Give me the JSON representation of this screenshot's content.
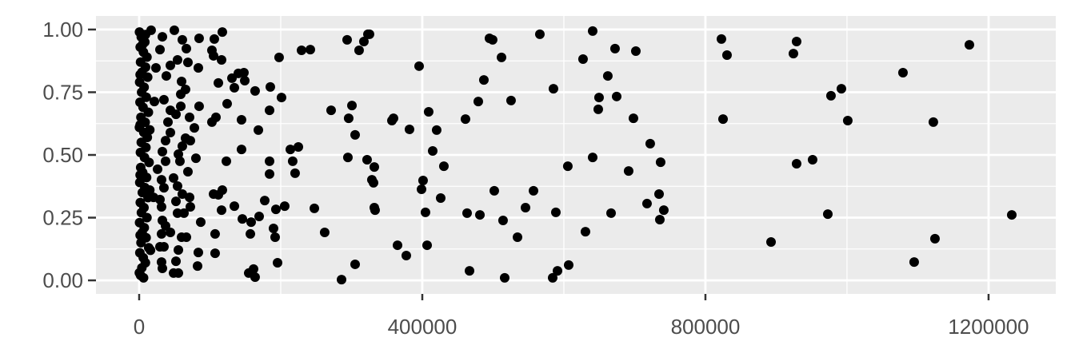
{
  "chart_data": {
    "type": "scatter",
    "title": "",
    "xlabel": "",
    "ylabel": "",
    "xlim": [
      -61000,
      1295000
    ],
    "ylim": [
      -0.054,
      1.054
    ],
    "x_ticks": [
      0,
      400000,
      800000,
      1200000
    ],
    "x_tick_labels": [
      "0",
      "400000",
      "800000",
      "1200000"
    ],
    "x_minor_ticks": [
      200000,
      600000,
      1000000
    ],
    "y_ticks": [
      0,
      0.25,
      0.5,
      0.75,
      1
    ],
    "y_tick_labels": [
      "0.00",
      "0.25",
      "0.50",
      "0.75",
      "1.00"
    ],
    "y_minor_ticks": [
      0.125,
      0.375,
      0.625,
      0.875
    ],
    "grid": true,
    "legend": "none",
    "colors": {
      "panel": "#ebebeb",
      "grid": "#ffffff",
      "point": "#000000",
      "text": "#4d4d4d"
    },
    "points": [
      [
        822600,
        0.962
      ],
      [
        830500,
        0.898
      ],
      [
        928800,
        0.952
      ],
      [
        924300,
        0.904
      ],
      [
        1172900,
        0.939
      ],
      [
        1079100,
        0.828
      ],
      [
        992100,
        0.764
      ],
      [
        977400,
        0.736
      ],
      [
        824900,
        0.643
      ],
      [
        1001100,
        0.637
      ],
      [
        1122000,
        0.631
      ],
      [
        951400,
        0.481
      ],
      [
        928800,
        0.465
      ],
      [
        972900,
        0.264
      ],
      [
        1232800,
        0.261
      ],
      [
        892700,
        0.153
      ],
      [
        1124300,
        0.166
      ],
      [
        1094900,
        0.073
      ],
      [
        325400,
        0.981
      ],
      [
        494900,
        0.965
      ],
      [
        499400,
        0.959
      ],
      [
        566100,
        0.981
      ],
      [
        640700,
        0.994
      ],
      [
        672300,
        0.924
      ],
      [
        701700,
        0.914
      ],
      [
        511900,
        0.889
      ],
      [
        627100,
        0.882
      ],
      [
        395500,
        0.854
      ],
      [
        662100,
        0.815
      ],
      [
        487000,
        0.799
      ],
      [
        585300,
        0.764
      ],
      [
        479100,
        0.713
      ],
      [
        525400,
        0.717
      ],
      [
        649700,
        0.729
      ],
      [
        674600,
        0.733
      ],
      [
        648600,
        0.682
      ],
      [
        409000,
        0.672
      ],
      [
        461000,
        0.643
      ],
      [
        698300,
        0.646
      ],
      [
        359300,
        0.646
      ],
      [
        357100,
        0.637
      ],
      [
        381900,
        0.602
      ],
      [
        420300,
        0.599
      ],
      [
        722000,
        0.545
      ],
      [
        414700,
        0.516
      ],
      [
        640700,
        0.49
      ],
      [
        605600,
        0.455
      ],
      [
        430500,
        0.455
      ],
      [
        736700,
        0.471
      ],
      [
        691500,
        0.436
      ],
      [
        332200,
        0.452
      ],
      [
        328800,
        0.401
      ],
      [
        331100,
        0.389
      ],
      [
        401100,
        0.398
      ],
      [
        398900,
        0.363
      ],
      [
        501700,
        0.357
      ],
      [
        557100,
        0.357
      ],
      [
        426000,
        0.328
      ],
      [
        734500,
        0.344
      ],
      [
        717500,
        0.306
      ],
      [
        741200,
        0.28
      ],
      [
        332200,
        0.29
      ],
      [
        333300,
        0.28
      ],
      [
        545800,
        0.29
      ],
      [
        404500,
        0.271
      ],
      [
        463300,
        0.268
      ],
      [
        481400,
        0.261
      ],
      [
        588700,
        0.271
      ],
      [
        666700,
        0.268
      ],
      [
        735600,
        0.242
      ],
      [
        514100,
        0.239
      ],
      [
        630500,
        0.194
      ],
      [
        534500,
        0.172
      ],
      [
        365000,
        0.14
      ],
      [
        406800,
        0.14
      ],
      [
        377400,
        0.099
      ],
      [
        606800,
        0.061
      ],
      [
        466700,
        0.038
      ],
      [
        591000,
        0.038
      ],
      [
        584200,
        0.01
      ],
      [
        516400,
        0.01
      ],
      [
        16900,
        0.997
      ],
      [
        49700,
        0.997
      ],
      [
        117500,
        0.99
      ],
      [
        32800,
        0.971
      ],
      [
        61000,
        0.959
      ],
      [
        84700,
        0.965
      ],
      [
        106200,
        0.962
      ],
      [
        293800,
        0.959
      ],
      [
        323200,
        0.981
      ],
      [
        317500,
        0.952
      ],
      [
        310700,
        0.917
      ],
      [
        66700,
        0.924
      ],
      [
        29400,
        0.92
      ],
      [
        102800,
        0.917
      ],
      [
        105100,
        0.895
      ],
      [
        116400,
        0.879
      ],
      [
        197700,
        0.889
      ],
      [
        229400,
        0.917
      ],
      [
        241800,
        0.92
      ],
      [
        23700,
        0.847
      ],
      [
        44100,
        0.857
      ],
      [
        54200,
        0.879
      ],
      [
        68900,
        0.869
      ],
      [
        83600,
        0.847
      ],
      [
        38400,
        0.815
      ],
      [
        59900,
        0.793
      ],
      [
        65500,
        0.761
      ],
      [
        111900,
        0.787
      ],
      [
        131100,
        0.806
      ],
      [
        140100,
        0.825
      ],
      [
        148000,
        0.828
      ],
      [
        149200,
        0.796
      ],
      [
        134500,
        0.768
      ],
      [
        163800,
        0.755
      ],
      [
        185300,
        0.771
      ],
      [
        201100,
        0.729
      ],
      [
        58800,
        0.742
      ],
      [
        35000,
        0.72
      ],
      [
        21500,
        0.713
      ],
      [
        84700,
        0.694
      ],
      [
        58800,
        0.694
      ],
      [
        124300,
        0.704
      ],
      [
        184200,
        0.678
      ],
      [
        271200,
        0.678
      ],
      [
        300600,
        0.697
      ],
      [
        296000,
        0.646
      ],
      [
        44100,
        0.678
      ],
      [
        52000,
        0.662
      ],
      [
        71200,
        0.65
      ],
      [
        40700,
        0.631
      ],
      [
        108500,
        0.65
      ],
      [
        102800,
        0.631
      ],
      [
        144600,
        0.64
      ],
      [
        78000,
        0.608
      ],
      [
        44100,
        0.589
      ],
      [
        168400,
        0.599
      ],
      [
        305100,
        0.58
      ],
      [
        37300,
        0.557
      ],
      [
        65500,
        0.567
      ],
      [
        72300,
        0.557
      ],
      [
        61000,
        0.535
      ],
      [
        144600,
        0.522
      ],
      [
        213600,
        0.522
      ],
      [
        224900,
        0.532
      ],
      [
        294900,
        0.49
      ],
      [
        322000,
        0.481
      ],
      [
        32800,
        0.513
      ],
      [
        55400,
        0.503
      ],
      [
        80200,
        0.487
      ],
      [
        57600,
        0.475
      ],
      [
        123200,
        0.475
      ],
      [
        184200,
        0.475
      ],
      [
        216900,
        0.475
      ],
      [
        184200,
        0.424
      ],
      [
        220300,
        0.427
      ],
      [
        26000,
        0.443
      ],
      [
        37300,
        0.475
      ],
      [
        68900,
        0.433
      ],
      [
        31600,
        0.401
      ],
      [
        48600,
        0.408
      ],
      [
        54200,
        0.376
      ],
      [
        35000,
        0.369
      ],
      [
        105100,
        0.344
      ],
      [
        117500,
        0.36
      ],
      [
        111900,
        0.341
      ],
      [
        20300,
        0.331
      ],
      [
        61000,
        0.344
      ],
      [
        71200,
        0.331
      ],
      [
        52000,
        0.315
      ],
      [
        29400,
        0.322
      ],
      [
        31600,
        0.293
      ],
      [
        72300,
        0.293
      ],
      [
        54200,
        0.268
      ],
      [
        63300,
        0.268
      ],
      [
        116400,
        0.28
      ],
      [
        134500,
        0.296
      ],
      [
        177400,
        0.318
      ],
      [
        193200,
        0.283
      ],
      [
        205600,
        0.296
      ],
      [
        247500,
        0.287
      ],
      [
        145800,
        0.245
      ],
      [
        158200,
        0.232
      ],
      [
        169500,
        0.255
      ],
      [
        87000,
        0.232
      ],
      [
        32800,
        0.239
      ],
      [
        37300,
        0.217
      ],
      [
        44100,
        0.191
      ],
      [
        31600,
        0.185
      ],
      [
        107300,
        0.185
      ],
      [
        157100,
        0.185
      ],
      [
        189800,
        0.207
      ],
      [
        192100,
        0.172
      ],
      [
        262100,
        0.191
      ],
      [
        59900,
        0.172
      ],
      [
        66700,
        0.172
      ],
      [
        29400,
        0.134
      ],
      [
        35000,
        0.134
      ],
      [
        55400,
        0.121
      ],
      [
        83600,
        0.111
      ],
      [
        107300,
        0.108
      ],
      [
        31600,
        0.073
      ],
      [
        52000,
        0.076
      ],
      [
        82500,
        0.057
      ],
      [
        32800,
        0.048
      ],
      [
        48600,
        0.029
      ],
      [
        55400,
        0.029
      ],
      [
        154800,
        0.029
      ],
      [
        161600,
        0.045
      ],
      [
        163800,
        0.013
      ],
      [
        195500,
        0.07
      ],
      [
        305100,
        0.064
      ],
      [
        285900,
        0.003
      ],
      [
        500,
        0.99
      ],
      [
        3000,
        0.97
      ],
      [
        8000,
        0.95
      ],
      [
        1500,
        0.93
      ],
      [
        6000,
        0.91
      ],
      [
        11000,
        0.89
      ],
      [
        2000,
        0.87
      ],
      [
        9000,
        0.85
      ],
      [
        4000,
        0.83
      ],
      [
        12000,
        0.81
      ],
      [
        700,
        0.79
      ],
      [
        7000,
        0.77
      ],
      [
        3500,
        0.75
      ],
      [
        10000,
        0.73
      ],
      [
        1200,
        0.71
      ],
      [
        5500,
        0.69
      ],
      [
        13000,
        0.67
      ],
      [
        2500,
        0.65
      ],
      [
        8500,
        0.63
      ],
      [
        400,
        0.61
      ],
      [
        6500,
        0.59
      ],
      [
        11500,
        0.57
      ],
      [
        3000,
        0.55
      ],
      [
        9500,
        0.53
      ],
      [
        1800,
        0.51
      ],
      [
        7500,
        0.49
      ],
      [
        14000,
        0.47
      ],
      [
        2200,
        0.45
      ],
      [
        5000,
        0.43
      ],
      [
        10500,
        0.41
      ],
      [
        900,
        0.39
      ],
      [
        8000,
        0.37
      ],
      [
        4500,
        0.35
      ],
      [
        12500,
        0.33
      ],
      [
        1600,
        0.31
      ],
      [
        6800,
        0.29
      ],
      [
        3200,
        0.27
      ],
      [
        11000,
        0.25
      ],
      [
        600,
        0.23
      ],
      [
        7200,
        0.21
      ],
      [
        4200,
        0.19
      ],
      [
        9800,
        0.17
      ],
      [
        2600,
        0.15
      ],
      [
        13500,
        0.13
      ],
      [
        1000,
        0.11
      ],
      [
        5800,
        0.09
      ],
      [
        8800,
        0.07
      ],
      [
        3800,
        0.05
      ],
      [
        300,
        0.03
      ],
      [
        6200,
        0.01
      ],
      [
        2000,
        0.02
      ],
      [
        9000,
        0.98
      ],
      [
        4800,
        0.94
      ],
      [
        1400,
        0.62
      ],
      [
        1400,
        0.42
      ],
      [
        1400,
        0.18
      ],
      [
        1400,
        0.82
      ],
      [
        15000,
        0.6
      ],
      [
        15000,
        0.36
      ],
      [
        16000,
        0.12
      ]
    ]
  }
}
